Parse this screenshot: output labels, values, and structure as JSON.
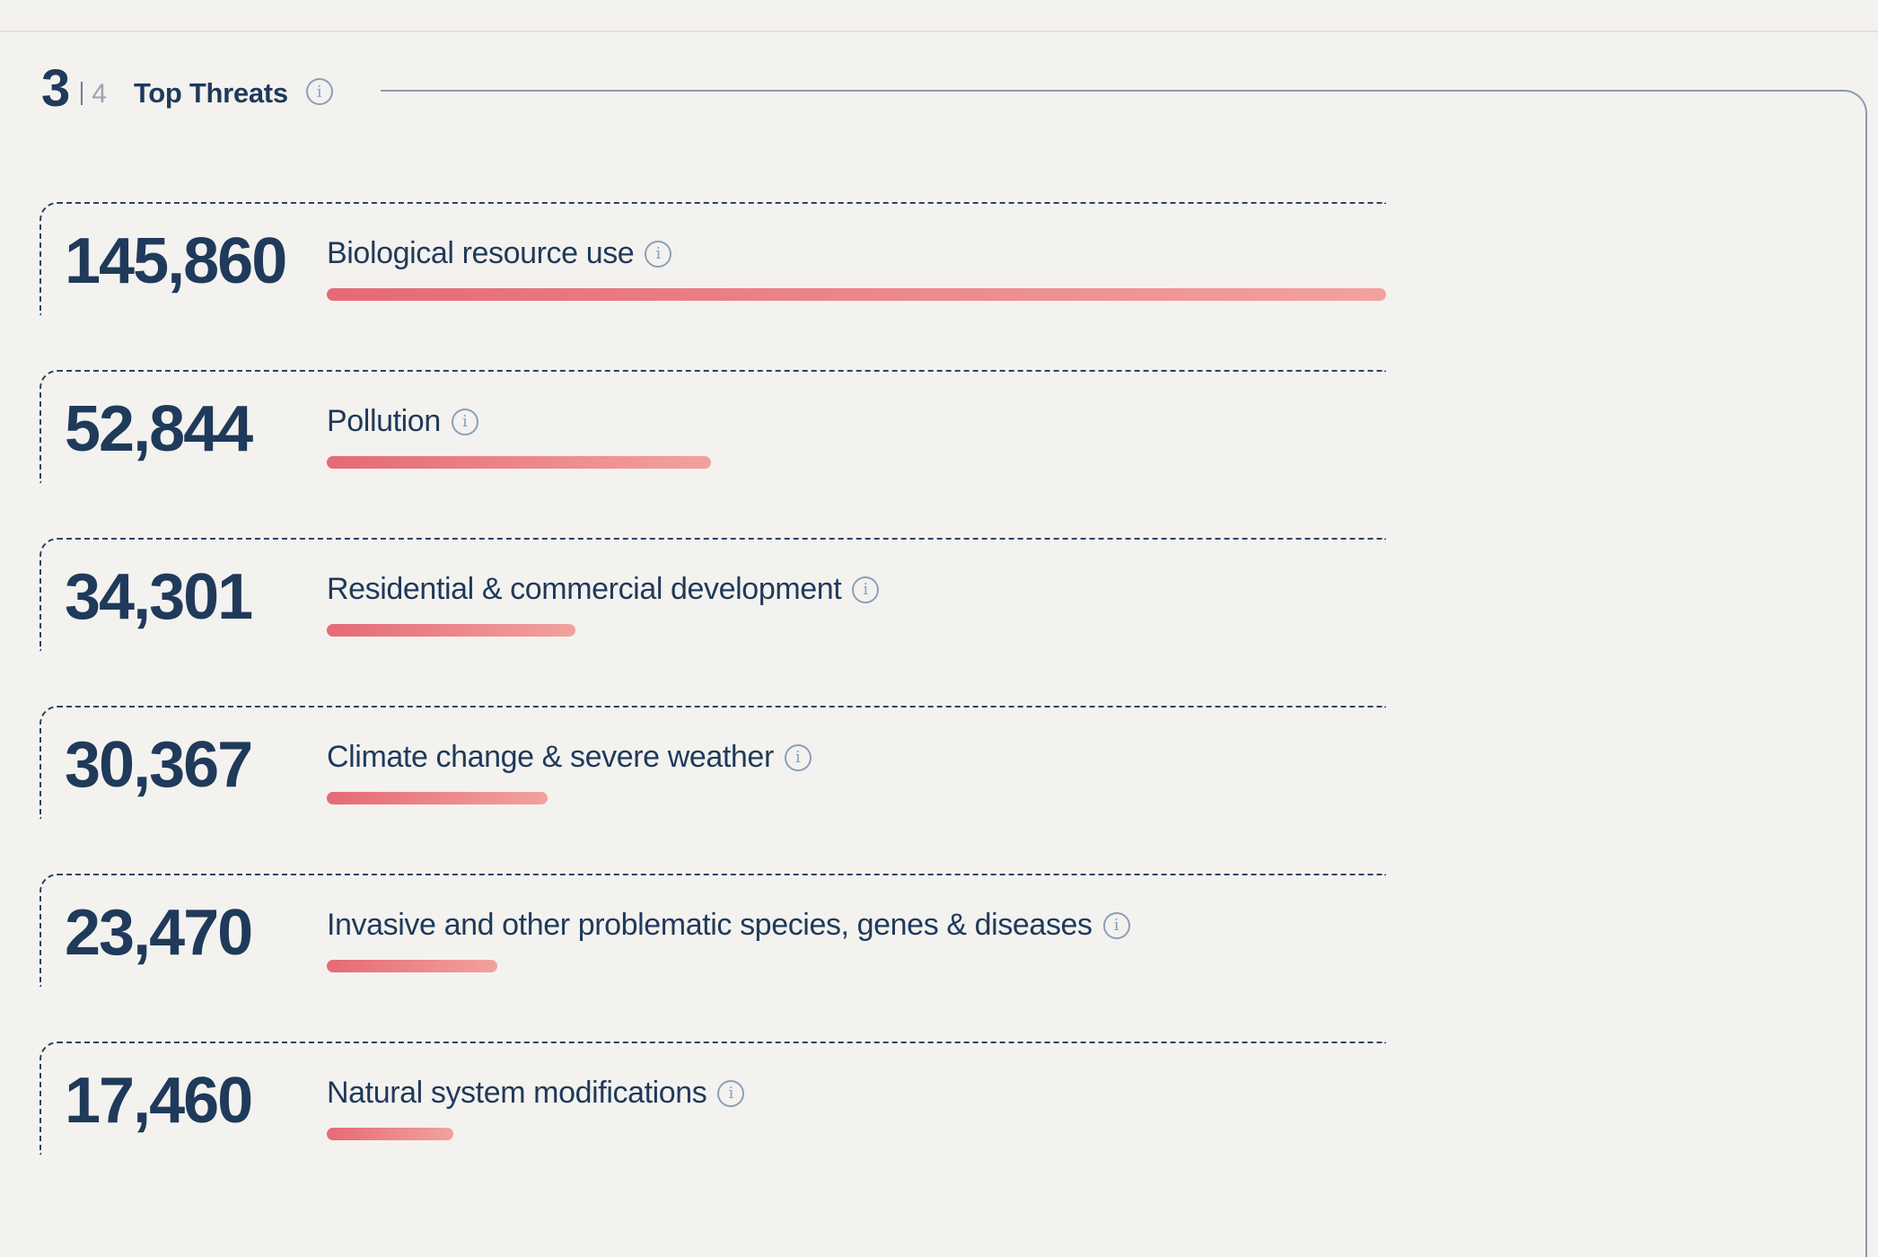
{
  "header": {
    "step_current": "3",
    "step_total": "4",
    "title": "Top Threats",
    "info_icon": "info-icon"
  },
  "threats": [
    {
      "count": "145,860",
      "label": "Biological resource use",
      "value": 145860
    },
    {
      "count": "52,844",
      "label": "Pollution",
      "value": 52844
    },
    {
      "count": "34,301",
      "label": "Residential & commercial development",
      "value": 34301
    },
    {
      "count": "30,367",
      "label": "Climate change & severe weather",
      "value": 30367
    },
    {
      "count": "23,470",
      "label": "Invasive and other problematic species, genes & diseases",
      "value": 23470
    },
    {
      "count": "17,460",
      "label": "Natural system modifications",
      "value": 17460
    }
  ],
  "colors": {
    "text": "#1f3a5a",
    "bar_start": "#e56a76",
    "bar_end": "#f2a29d",
    "background": "#f4f2ef",
    "icon": "#8aa0ba"
  }
}
